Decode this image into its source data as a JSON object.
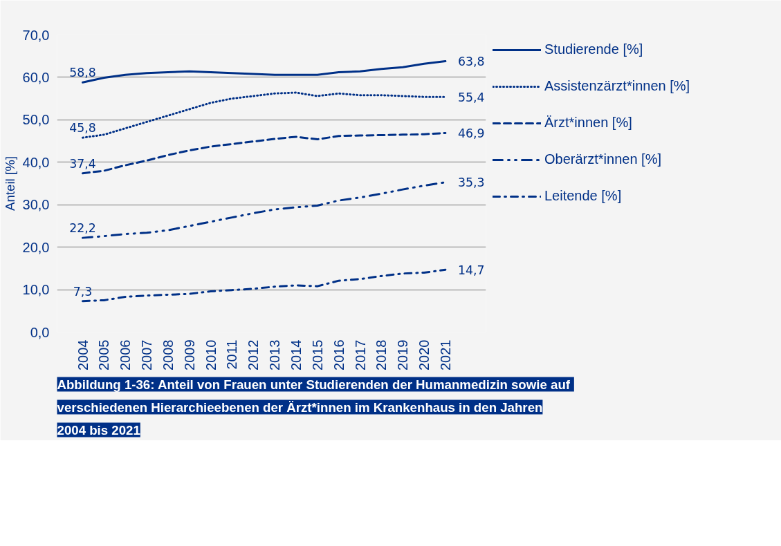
{
  "chart_data": {
    "type": "line",
    "title": "Abbildung 1-36:  Anteil von Frauen unter Studierenden der Humanmedizin sowie auf\nverschiedenen Hierarchieebenen der Ärzt*innen im Krankenhaus in den Jahren\n2004 bis 2021",
    "ylabel": "Anteil [%]",
    "categories": [
      "2004",
      "2005",
      "2006",
      "2007",
      "2008",
      "2009",
      "2010",
      "2011",
      "2012",
      "2013",
      "2014",
      "2015",
      "2016",
      "2017",
      "2018",
      "2019",
      "2020",
      "2021"
    ],
    "ylim": [
      0,
      70
    ],
    "yticks": [
      {
        "value": 0,
        "label": "0,0"
      },
      {
        "value": 10,
        "label": "10,0"
      },
      {
        "value": 20,
        "label": "20,0"
      },
      {
        "value": 30,
        "label": "30,0"
      },
      {
        "value": 40,
        "label": "40,0"
      },
      {
        "value": 50,
        "label": "50,0"
      },
      {
        "value": 60,
        "label": "60,0"
      },
      {
        "value": 70,
        "label": "70,0"
      }
    ],
    "grid": "y",
    "legend": "right",
    "marker": "none",
    "series": [
      {
        "name": "Studierende [%]",
        "color": "#003087",
        "line_style": "solid",
        "values": [
          58.8,
          59.9,
          60.6,
          61.0,
          61.2,
          61.4,
          61.2,
          61.0,
          60.8,
          60.6,
          60.6,
          60.6,
          61.2,
          61.4,
          62.0,
          62.4,
          63.2,
          63.8
        ],
        "value_labels": [
          "58,8",
          null,
          null,
          null,
          null,
          null,
          null,
          null,
          null,
          null,
          null,
          null,
          null,
          null,
          null,
          null,
          null,
          "63,8"
        ]
      },
      {
        "name": "Assistenzärzt*innen [%]",
        "color": "#003087",
        "line_style": "dotted",
        "values": [
          45.8,
          46.5,
          48.0,
          49.5,
          51.0,
          52.5,
          54.0,
          55.0,
          55.6,
          56.2,
          56.4,
          55.6,
          56.2,
          55.8,
          55.8,
          55.6,
          55.4,
          55.4
        ],
        "value_labels": [
          "45,8",
          null,
          null,
          null,
          null,
          null,
          null,
          null,
          null,
          null,
          null,
          null,
          null,
          null,
          null,
          null,
          null,
          "55,4"
        ]
      },
      {
        "name": "Ärzt*innen [%]",
        "color": "#003087",
        "line_style": "dashed",
        "values": [
          37.4,
          38.0,
          39.3,
          40.4,
          41.7,
          42.8,
          43.7,
          44.3,
          44.9,
          45.5,
          46.0,
          45.4,
          46.2,
          46.3,
          46.4,
          46.5,
          46.6,
          46.9
        ],
        "value_labels": [
          "37,4",
          null,
          null,
          null,
          null,
          null,
          null,
          null,
          null,
          null,
          null,
          null,
          null,
          null,
          null,
          null,
          null,
          "46,9"
        ]
      },
      {
        "name": "Oberärzt*innen [%]",
        "color": "#003087",
        "line_style": "dashdotdot",
        "values": [
          22.2,
          22.6,
          23.1,
          23.4,
          24.0,
          25.0,
          26.0,
          27.0,
          28.0,
          28.9,
          29.4,
          29.8,
          31.0,
          31.7,
          32.6,
          33.6,
          34.5,
          35.3
        ],
        "value_labels": [
          "22,2",
          null,
          null,
          null,
          null,
          null,
          null,
          null,
          null,
          null,
          null,
          null,
          null,
          null,
          null,
          null,
          null,
          "35,3"
        ]
      },
      {
        "name": "Leitende [%]",
        "color": "#003087",
        "line_style": "dashdot",
        "values": [
          7.3,
          7.5,
          8.3,
          8.6,
          8.8,
          9.0,
          9.6,
          9.9,
          10.2,
          10.7,
          11.0,
          10.8,
          12.1,
          12.5,
          13.2,
          13.8,
          14.0,
          14.7
        ],
        "value_labels": [
          "7,3",
          null,
          null,
          null,
          null,
          null,
          null,
          null,
          null,
          null,
          null,
          null,
          null,
          null,
          null,
          null,
          null,
          "14,7"
        ]
      }
    ]
  }
}
